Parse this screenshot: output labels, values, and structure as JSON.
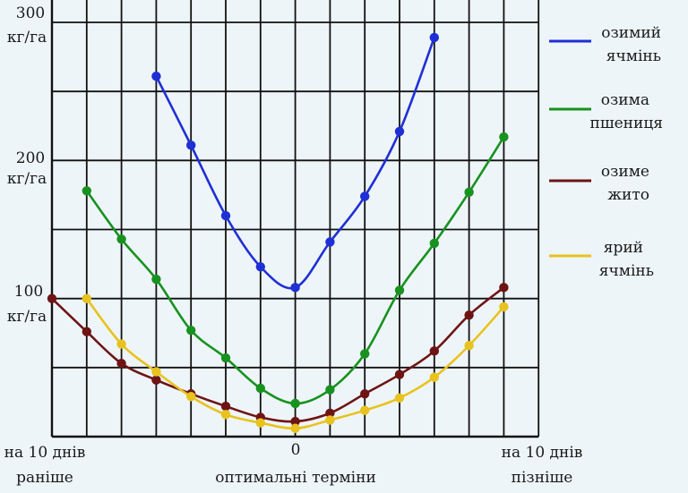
{
  "chart_data": {
    "type": "line",
    "x": [
      -7,
      -6,
      -5,
      -4,
      -3,
      -2,
      -1,
      0,
      1,
      2,
      3,
      4,
      5,
      6,
      7
    ],
    "xlim": [
      -7,
      7
    ],
    "ylim": [
      0,
      300
    ],
    "grid": true,
    "legend_placement": "right",
    "y_ticks": [
      {
        "value": 300,
        "line1": "300",
        "line2": "кг/га"
      },
      {
        "value": 200,
        "line1": "200",
        "line2": "кг/га"
      },
      {
        "value": 100,
        "line1": "100",
        "line2": "кг/га"
      }
    ],
    "x_labels": {
      "left": [
        "на 10 днів",
        "раніше"
      ],
      "center_tick": "0",
      "center_caption": "оптимальні терміни",
      "right": [
        "на 10 днів",
        "пізніше"
      ]
    },
    "series": [
      {
        "name_lines": [
          "озимий",
          "ячмінь"
        ],
        "color": "#1f2fd6",
        "points": [
          [
            -4,
            261
          ],
          [
            -3,
            211
          ],
          [
            -2,
            160
          ],
          [
            -1,
            123
          ],
          [
            0,
            108
          ],
          [
            1,
            141
          ],
          [
            2,
            174
          ],
          [
            3,
            221
          ],
          [
            4,
            289
          ]
        ]
      },
      {
        "name_lines": [
          "озима",
          "пшениця"
        ],
        "color": "#17921f",
        "points": [
          [
            -6,
            178
          ],
          [
            -5,
            143
          ],
          [
            -4,
            114
          ],
          [
            -3,
            77
          ],
          [
            -2,
            57
          ],
          [
            -1,
            35
          ],
          [
            0,
            24
          ],
          [
            1,
            34
          ],
          [
            2,
            60
          ],
          [
            3,
            106
          ],
          [
            4,
            140
          ],
          [
            5,
            177
          ],
          [
            6,
            217
          ]
        ]
      },
      {
        "name_lines": [
          "озиме",
          "жито"
        ],
        "color": "#6e1414",
        "points": [
          [
            -7,
            100
          ],
          [
            -6,
            76
          ],
          [
            -5,
            53
          ],
          [
            -4,
            41
          ],
          [
            -3,
            31
          ],
          [
            -2,
            22
          ],
          [
            -1,
            14
          ],
          [
            0,
            11
          ],
          [
            1,
            17
          ],
          [
            2,
            31
          ],
          [
            3,
            45
          ],
          [
            4,
            62
          ],
          [
            5,
            88
          ],
          [
            6,
            108
          ]
        ]
      },
      {
        "name_lines": [
          "ярий",
          "ячмінь"
        ],
        "color": "#e8c21e",
        "points": [
          [
            -6,
            100
          ],
          [
            -5,
            67
          ],
          [
            -4,
            47
          ],
          [
            -3,
            29
          ],
          [
            -2,
            16
          ],
          [
            -1,
            10
          ],
          [
            0,
            6
          ],
          [
            1,
            12
          ],
          [
            2,
            19
          ],
          [
            3,
            28
          ],
          [
            4,
            43
          ],
          [
            5,
            66
          ],
          [
            6,
            94
          ]
        ]
      }
    ]
  }
}
